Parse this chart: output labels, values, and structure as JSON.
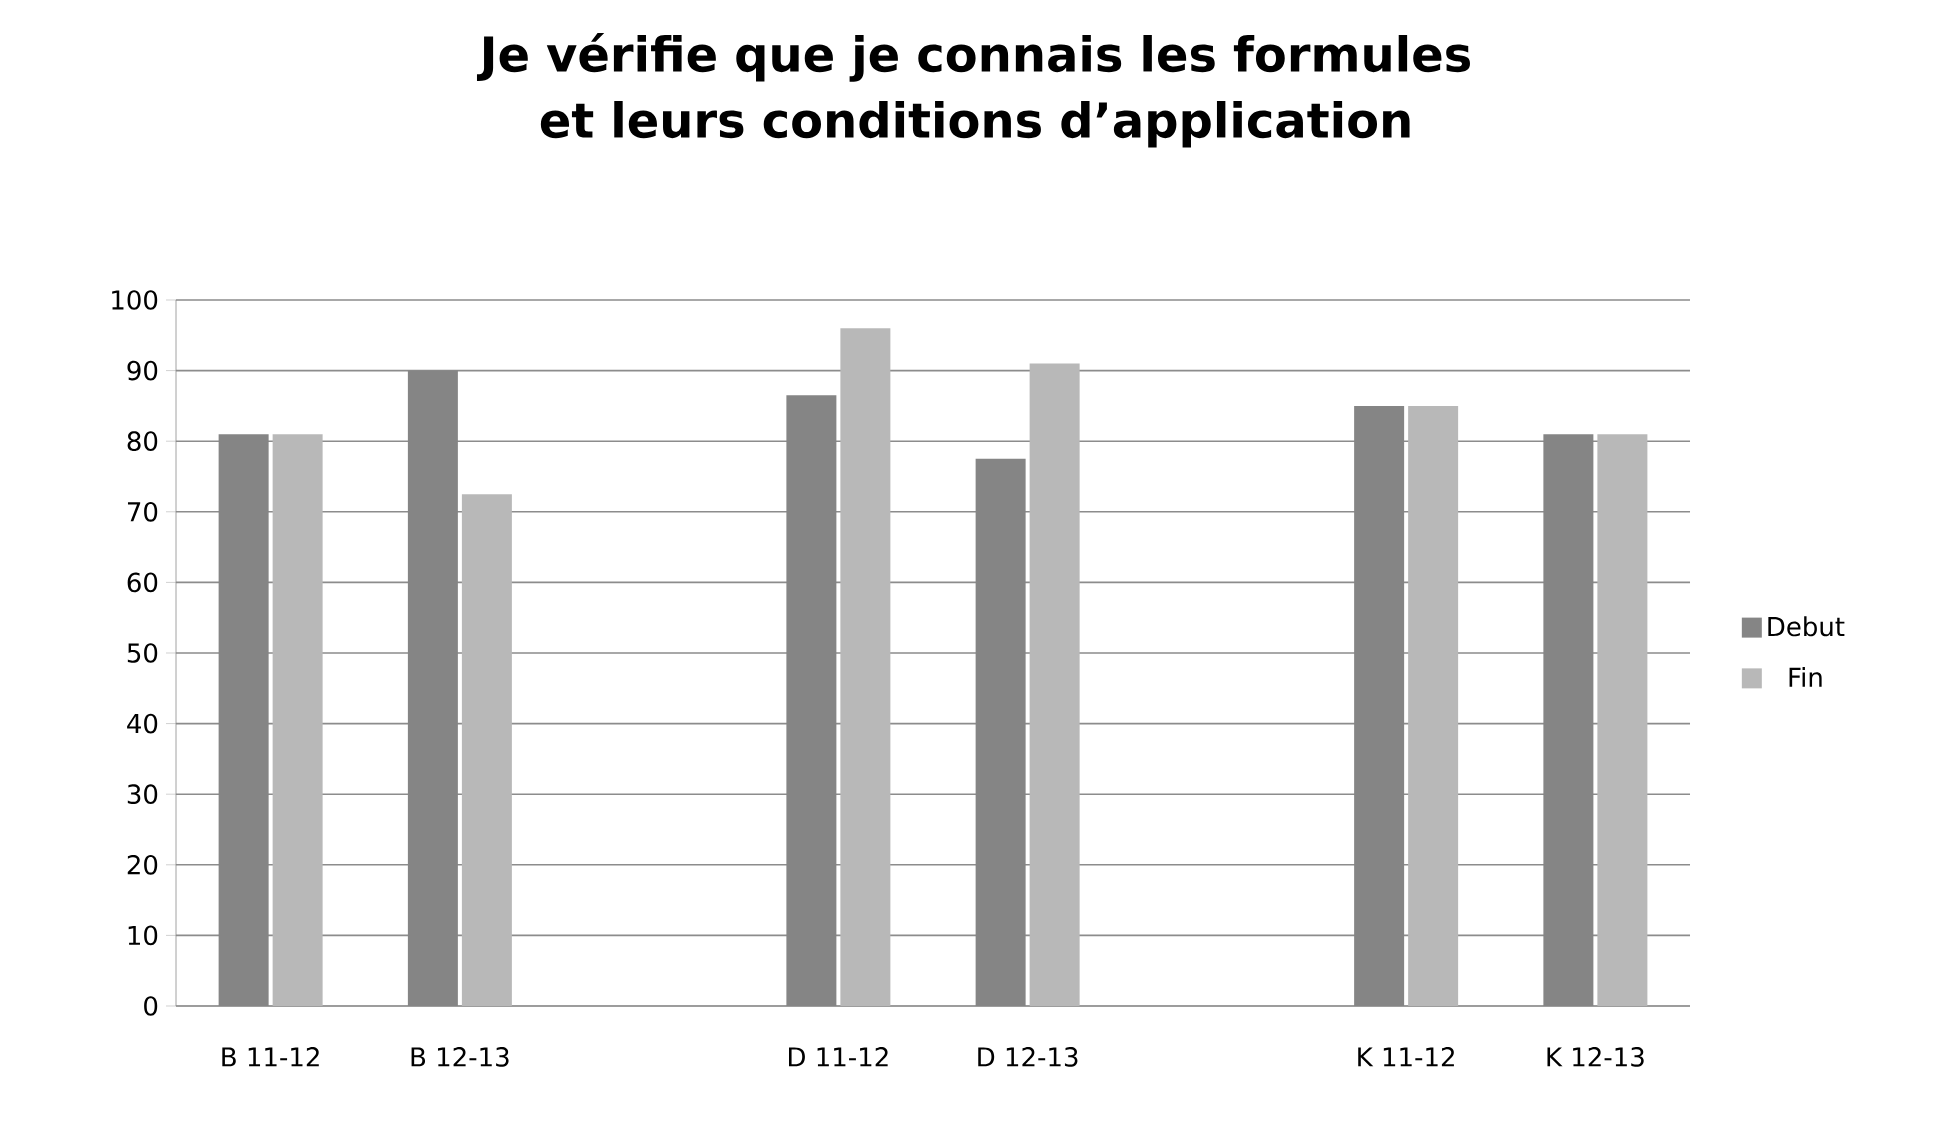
{
  "chart_data": {
    "type": "bar",
    "title": "Je vérifie que je connais les formules et leurs conditions d’application",
    "categories": [
      "B 11-12",
      "B 12-13",
      null,
      "D 11-12",
      "D 12-13",
      null,
      "K 11-12",
      "K 12-13"
    ],
    "series": [
      {
        "name": "Debut",
        "color": "#858585",
        "values": [
          81,
          90,
          null,
          86.5,
          77.5,
          null,
          85,
          81
        ]
      },
      {
        "name": "Fin",
        "color": "#b8b8b8",
        "values": [
          81,
          72.5,
          null,
          96,
          91,
          null,
          85,
          81
        ]
      }
    ],
    "ylim": [
      0,
      100
    ],
    "yticks": [
      0,
      10,
      20,
      30,
      40,
      50,
      60,
      70,
      80,
      90,
      100
    ],
    "grid": "y",
    "legend": "right"
  }
}
